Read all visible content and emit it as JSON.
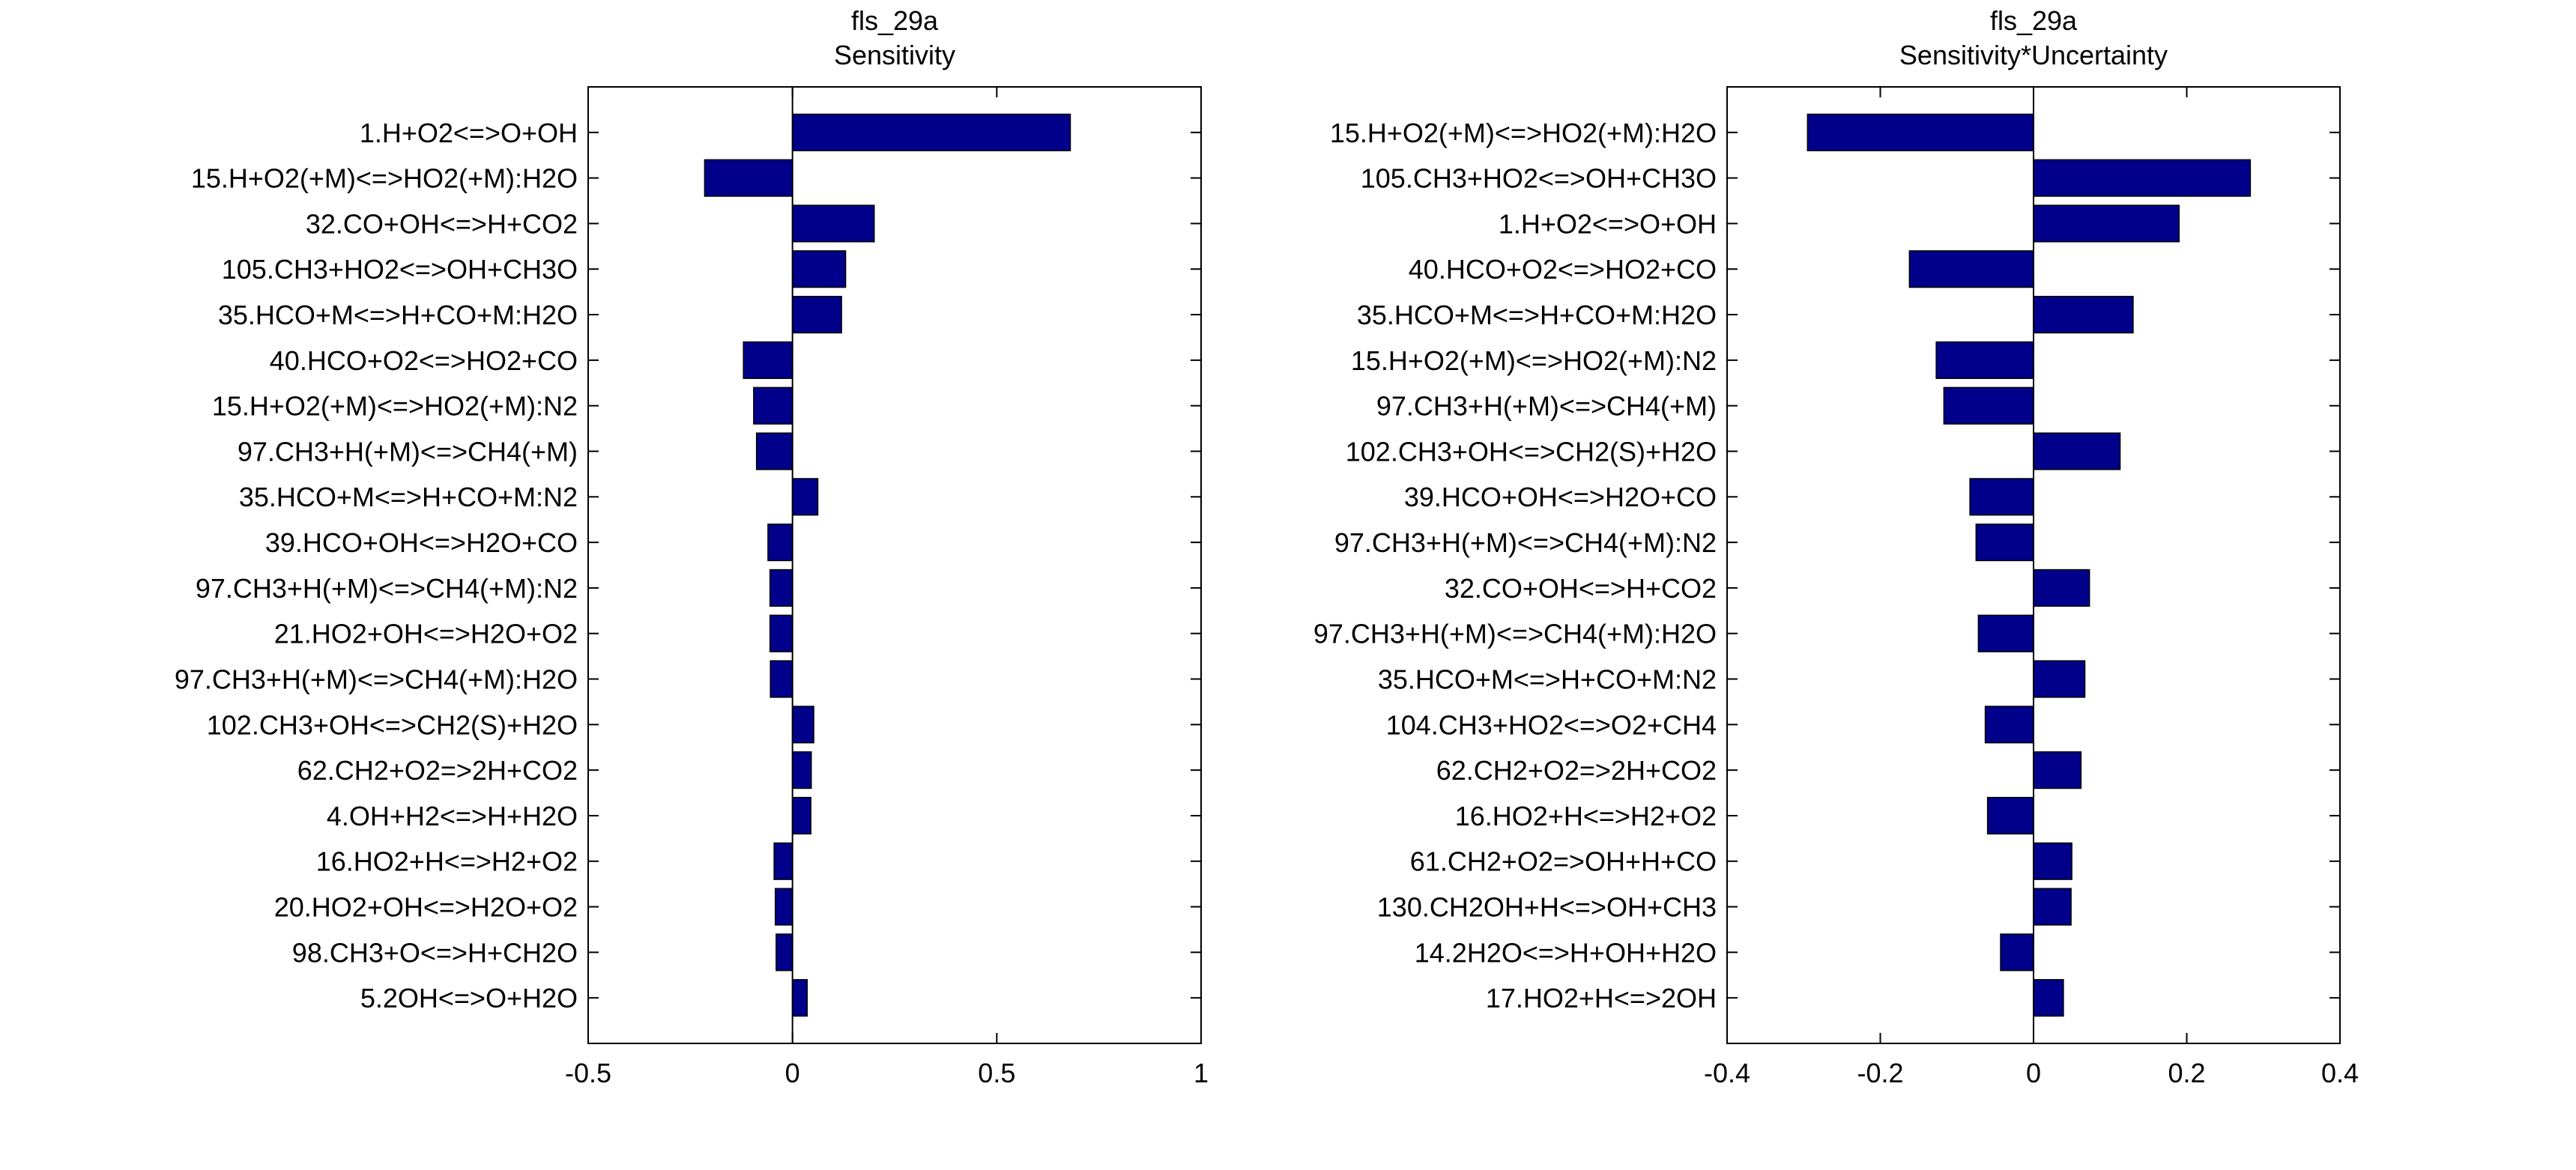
{
  "chart_data": [
    {
      "type": "bar",
      "orientation": "horizontal",
      "title": "fls_29a",
      "subtitle": "Sensitivity",
      "xlabel": "",
      "ylabel": "",
      "xlim": [
        -0.5,
        1
      ],
      "xticks": [
        -0.5,
        0,
        0.5,
        1
      ],
      "xtick_labels": [
        "-0.5",
        "0",
        "0.5",
        "1"
      ],
      "grid": false,
      "bar_color": "#00008b",
      "categories": [
        "1.H+O2<=>O+OH",
        "15.H+O2(+M)<=>HO2(+M):H2O",
        "32.CO+OH<=>H+CO2",
        "105.CH3+HO2<=>OH+CH3O",
        "35.HCO+M<=>H+CO+M:H2O",
        "40.HCO+O2<=>HO2+CO",
        "15.H+O2(+M)<=>HO2(+M):N2",
        "97.CH3+H(+M)<=>CH4(+M)",
        "35.HCO+M<=>H+CO+M:N2",
        "39.HCO+OH<=>H2O+CO",
        "97.CH3+H(+M)<=>CH4(+M):N2",
        "21.HO2+OH<=>H2O+O2",
        "97.CH3+H(+M)<=>CH4(+M):H2O",
        "102.CH3+OH<=>CH2(S)+H2O",
        "62.CH2+O2=>2H+CO2",
        "4.OH+H2<=>H+H2O",
        "16.HO2+H<=>H2+O2",
        "20.HO2+OH<=>H2O+O2",
        "98.CH3+O<=>H+CH2O",
        "5.2OH<=>O+H2O"
      ],
      "values": [
        0.68,
        -0.215,
        0.2,
        0.13,
        0.12,
        -0.12,
        -0.095,
        -0.088,
        0.062,
        -0.06,
        -0.055,
        -0.055,
        -0.054,
        0.052,
        0.046,
        0.045,
        -0.045,
        -0.042,
        -0.04,
        0.036
      ]
    },
    {
      "type": "bar",
      "orientation": "horizontal",
      "title": "fls_29a",
      "subtitle": "Sensitivity*Uncertainty",
      "xlabel": "",
      "ylabel": "",
      "xlim": [
        -0.4,
        0.4
      ],
      "xticks": [
        -0.4,
        -0.2,
        0,
        0.2,
        0.4
      ],
      "xtick_labels": [
        "-0.4",
        "-0.2",
        "0",
        "0.2",
        "0.4"
      ],
      "grid": false,
      "bar_color": "#00008b",
      "categories": [
        "15.H+O2(+M)<=>HO2(+M):H2O",
        "105.CH3+HO2<=>OH+CH3O",
        "1.H+O2<=>O+OH",
        "40.HCO+O2<=>HO2+CO",
        "35.HCO+M<=>H+CO+M:H2O",
        "15.H+O2(+M)<=>HO2(+M):N2",
        "97.CH3+H(+M)<=>CH4(+M)",
        "102.CH3+OH<=>CH2(S)+H2O",
        "39.HCO+OH<=>H2O+CO",
        "97.CH3+H(+M)<=>CH4(+M):N2",
        "32.CO+OH<=>H+CO2",
        "97.CH3+H(+M)<=>CH4(+M):H2O",
        "35.HCO+M<=>H+CO+M:N2",
        "104.CH3+HO2<=>O2+CH4",
        "62.CH2+O2=>2H+CO2",
        "16.HO2+H<=>H2+O2",
        "61.CH2+O2=>OH+H+CO",
        "130.CH2OH+H<=>OH+CH3",
        "14.2H2O<=>H+OH+H2O",
        "17.HO2+H<=>2OH"
      ],
      "values": [
        -0.295,
        0.283,
        0.19,
        -0.162,
        0.13,
        -0.127,
        -0.117,
        0.113,
        -0.083,
        -0.075,
        0.073,
        -0.072,
        0.067,
        -0.063,
        0.062,
        -0.06,
        0.05,
        0.049,
        -0.043,
        0.039
      ]
    }
  ]
}
